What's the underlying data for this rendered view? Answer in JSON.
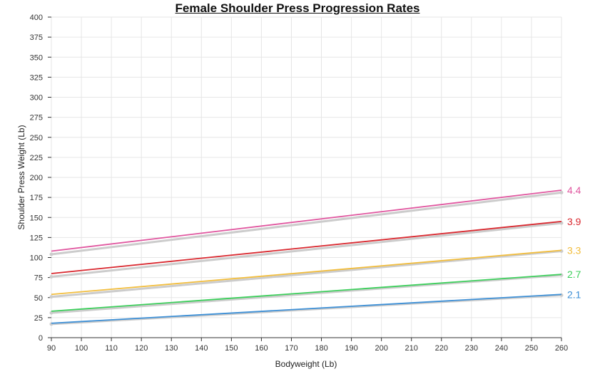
{
  "chart_data": {
    "type": "line",
    "title": "Female Shoulder Press Progression Rates",
    "xlabel": "Bodyweight (Lb)",
    "ylabel": "Shoulder Press  Weight (Lb)",
    "xlim": [
      90,
      260
    ],
    "ylim": [
      0,
      400
    ],
    "xticks": [
      90,
      100,
      110,
      120,
      130,
      140,
      150,
      160,
      170,
      180,
      190,
      200,
      210,
      220,
      230,
      240,
      250,
      260
    ],
    "yticks": [
      0,
      25,
      50,
      75,
      100,
      125,
      150,
      175,
      200,
      225,
      250,
      275,
      300,
      325,
      350,
      375,
      400
    ],
    "grid": true,
    "series": [
      {
        "name": "4.4",
        "color": "#e0569f",
        "x": [
          90,
          260
        ],
        "y": [
          108,
          184
        ],
        "trend_color": "#cccccc",
        "trend_y": [
          104,
          181
        ]
      },
      {
        "name": "3.9",
        "color": "#d9282f",
        "x": [
          90,
          260
        ],
        "y": [
          80,
          145
        ],
        "trend_color": "#cccccc",
        "trend_y": [
          76,
          143
        ]
      },
      {
        "name": "3.3",
        "color": "#f2bd3c",
        "x": [
          90,
          260
        ],
        "y": [
          54,
          109
        ],
        "trend_color": "#cccccc",
        "trend_y": [
          51,
          108
        ]
      },
      {
        "name": "2.7",
        "color": "#3ccf5b",
        "x": [
          90,
          260
        ],
        "y": [
          33,
          79
        ],
        "trend_color": "#cccccc",
        "trend_y": [
          31,
          78
        ]
      },
      {
        "name": "2.1",
        "color": "#3c8fd6",
        "x": [
          90,
          260
        ],
        "y": [
          18,
          54
        ],
        "trend_color": "#cccccc",
        "trend_y": [
          17,
          53
        ]
      }
    ]
  }
}
